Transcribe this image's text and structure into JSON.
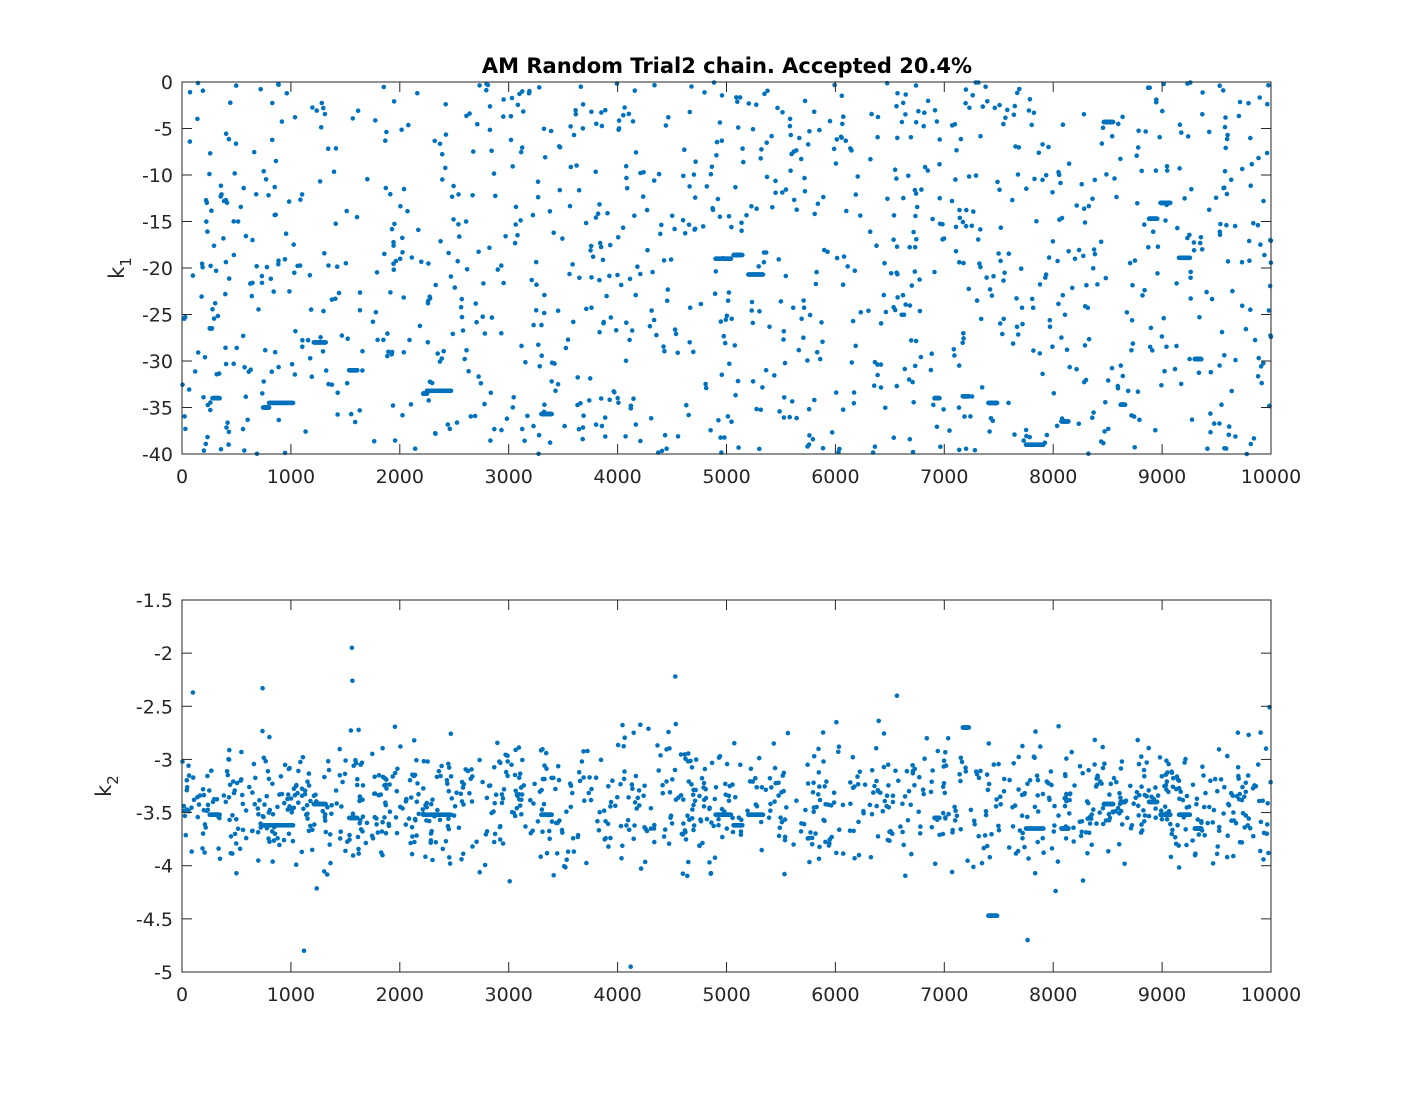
{
  "chart_data": [
    {
      "type": "scatter",
      "title": "AM Random Trial2 chain. Accepted 20.4%",
      "xlabel": "",
      "ylabel": {
        "base": "k",
        "subscript": "1"
      },
      "xlim": [
        0,
        10000
      ],
      "ylim": [
        -40,
        0
      ],
      "xticks": [
        0,
        1000,
        2000,
        3000,
        4000,
        5000,
        6000,
        7000,
        8000,
        9000,
        10000
      ],
      "xtick_labels": [
        "0",
        "1000",
        "2000",
        "3000",
        "4000",
        "5000",
        "6000",
        "7000",
        "8000",
        "9000",
        "10000"
      ],
      "yticks": [
        0,
        -5,
        -10,
        -15,
        -20,
        -25,
        -30,
        -35,
        -40
      ],
      "ytick_labels": [
        "0",
        "-5",
        "-10",
        "-15",
        "-20",
        "-25",
        "-30",
        "-35",
        "-40"
      ],
      "grid": false,
      "box": true,
      "marker_color": "#0072bd",
      "stationary_runs": [
        {
          "x": [
            255,
            275
          ],
          "y": -26.5
        },
        {
          "x": [
            280,
            345
          ],
          "y": -34.0
        },
        {
          "x": [
            745,
            800
          ],
          "y": -35.0
        },
        {
          "x": [
            800,
            1020
          ],
          "y": -34.5
        },
        {
          "x": [
            1210,
            1320
          ],
          "y": -28.0
        },
        {
          "x": [
            1535,
            1610
          ],
          "y": -31.0
        },
        {
          "x": [
            2215,
            2250
          ],
          "y": -33.5
        },
        {
          "x": [
            2250,
            2470
          ],
          "y": -33.2
        },
        {
          "x": [
            3300,
            3395
          ],
          "y": -35.7
        },
        {
          "x": [
            4900,
            5040
          ],
          "y": -19.0
        },
        {
          "x": [
            5065,
            5145
          ],
          "y": -18.6
        },
        {
          "x": [
            5200,
            5335
          ],
          "y": -20.7
        },
        {
          "x": [
            6910,
            6955
          ],
          "y": -34.0
        },
        {
          "x": [
            7170,
            7225
          ],
          "y": -33.8
        },
        {
          "x": [
            7405,
            7485
          ],
          "y": -34.5
        },
        {
          "x": [
            7750,
            7910
          ],
          "y": -39.0
        },
        {
          "x": [
            8075,
            8140
          ],
          "y": -36.5
        },
        {
          "x": [
            8465,
            8550
          ],
          "y": -4.3
        },
        {
          "x": [
            8620,
            8660
          ],
          "y": -34.7
        },
        {
          "x": [
            8880,
            8955
          ],
          "y": -14.7
        },
        {
          "x": [
            8985,
            9075
          ],
          "y": -13.0
        },
        {
          "x": [
            9155,
            9255
          ],
          "y": -18.9
        },
        {
          "x": [
            9300,
            9360
          ],
          "y": -29.8
        }
      ],
      "points_per_run": 30,
      "scatter_count": 1150,
      "seed": 11
    },
    {
      "type": "scatter",
      "title": "",
      "xlabel": "",
      "ylabel": {
        "base": "k",
        "subscript": "2"
      },
      "xlim": [
        0,
        10000
      ],
      "ylim": [
        -5,
        -1.5
      ],
      "xticks": [
        0,
        1000,
        2000,
        3000,
        4000,
        5000,
        6000,
        7000,
        8000,
        9000,
        10000
      ],
      "xtick_labels": [
        "0",
        "1000",
        "2000",
        "3000",
        "4000",
        "5000",
        "6000",
        "7000",
        "8000",
        "9000",
        "10000"
      ],
      "yticks": [
        -1.5,
        -2,
        -2.5,
        -3,
        -3.5,
        -4,
        -4.5,
        -5
      ],
      "ytick_labels": [
        "-1.5",
        "-2",
        "-2.5",
        "-3",
        "-3.5",
        "-4",
        "-4.5",
        "-5"
      ],
      "grid": false,
      "box": true,
      "marker_color": "#0072bd",
      "stationary_runs": [
        {
          "x": [
            255,
            345
          ],
          "y": -3.52
        },
        {
          "x": [
            745,
            800
          ],
          "y": -3.62
        },
        {
          "x": [
            800,
            1020
          ],
          "y": -3.62
        },
        {
          "x": [
            1210,
            1320
          ],
          "y": -3.42
        },
        {
          "x": [
            1535,
            1610
          ],
          "y": -3.55
        },
        {
          "x": [
            2215,
            2470
          ],
          "y": -3.52
        },
        {
          "x": [
            3300,
            3395
          ],
          "y": -3.52
        },
        {
          "x": [
            4900,
            5040
          ],
          "y": -3.52
        },
        {
          "x": [
            5065,
            5145
          ],
          "y": -3.62
        },
        {
          "x": [
            5200,
            5335
          ],
          "y": -3.52
        },
        {
          "x": [
            6910,
            6955
          ],
          "y": -3.55
        },
        {
          "x": [
            7170,
            7225
          ],
          "y": -2.7
        },
        {
          "x": [
            7405,
            7485
          ],
          "y": -4.47
        },
        {
          "x": [
            7750,
            7910
          ],
          "y": -3.65
        },
        {
          "x": [
            8075,
            8140
          ],
          "y": -3.65
        },
        {
          "x": [
            8465,
            8550
          ],
          "y": -3.42
        },
        {
          "x": [
            8620,
            8660
          ],
          "y": -3.4
        },
        {
          "x": [
            8880,
            8955
          ],
          "y": -3.4
        },
        {
          "x": [
            8985,
            9075
          ],
          "y": -3.52
        },
        {
          "x": [
            9155,
            9255
          ],
          "y": -3.52
        },
        {
          "x": [
            9300,
            9360
          ],
          "y": -3.65
        }
      ],
      "extreme_points": [
        {
          "x": 1560,
          "y": -1.95
        },
        {
          "x": 4530,
          "y": -2.22
        },
        {
          "x": 1565,
          "y": -2.26
        },
        {
          "x": 100,
          "y": -2.37
        },
        {
          "x": 740,
          "y": -2.33
        },
        {
          "x": 6565,
          "y": -2.4
        },
        {
          "x": 1120,
          "y": -4.8
        },
        {
          "x": 4120,
          "y": -4.95
        },
        {
          "x": 7765,
          "y": -4.7
        }
      ],
      "scatter_count": 1150,
      "seed": 23
    }
  ]
}
